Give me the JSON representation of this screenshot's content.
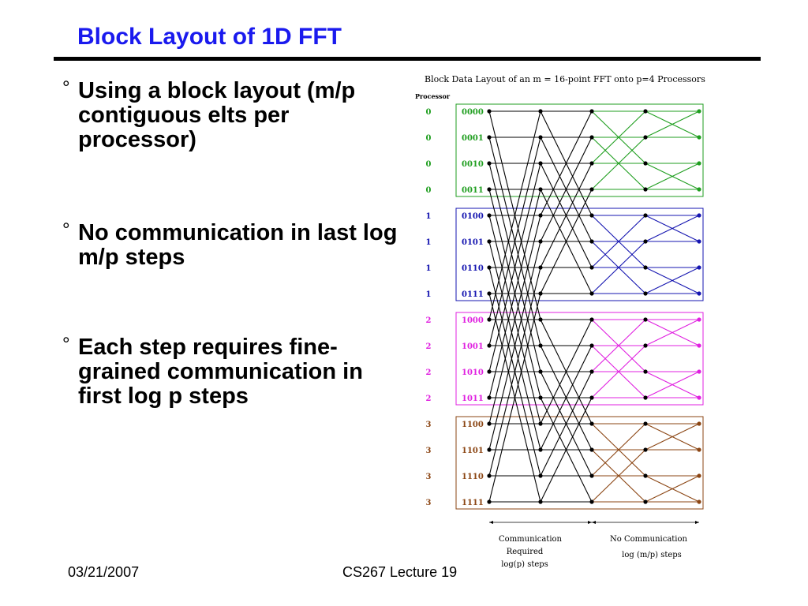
{
  "slide": {
    "title": "Block Layout of 1D FFT",
    "bullets": [
      "Using a block layout (m/p contiguous elts per processor)",
      "No communication in last log m/p steps",
      "Each step requires fine-grained communication in first log p steps"
    ],
    "bullet_mark": "°",
    "footer_left": "03/21/2007",
    "footer_center": "CS267 Lecture 19"
  },
  "diagram": {
    "title": "Block Data Layout of an m = 16-point FFT onto p=4 Processors",
    "processor_header": "Processor",
    "rows": [
      {
        "processor": "0",
        "index": "0000"
      },
      {
        "processor": "0",
        "index": "0001"
      },
      {
        "processor": "0",
        "index": "0010"
      },
      {
        "processor": "0",
        "index": "0011"
      },
      {
        "processor": "1",
        "index": "0100"
      },
      {
        "processor": "1",
        "index": "0101"
      },
      {
        "processor": "1",
        "index": "0110"
      },
      {
        "processor": "1",
        "index": "0111"
      },
      {
        "processor": "2",
        "index": "1000"
      },
      {
        "processor": "2",
        "index": "1001"
      },
      {
        "processor": "2",
        "index": "1010"
      },
      {
        "processor": "2",
        "index": "1011"
      },
      {
        "processor": "3",
        "index": "1100"
      },
      {
        "processor": "3",
        "index": "1101"
      },
      {
        "processor": "3",
        "index": "1110"
      },
      {
        "processor": "3",
        "index": "1111"
      }
    ],
    "processor_colors": [
      "#1f9e1f",
      "#1515b0",
      "#e020e0",
      "#8b4513"
    ],
    "cross_color": "#000000",
    "communication_label": [
      "Communication",
      "Required",
      "log(p) steps"
    ],
    "no_communication_label": [
      "No Communication",
      "log (m/p) steps"
    ]
  }
}
